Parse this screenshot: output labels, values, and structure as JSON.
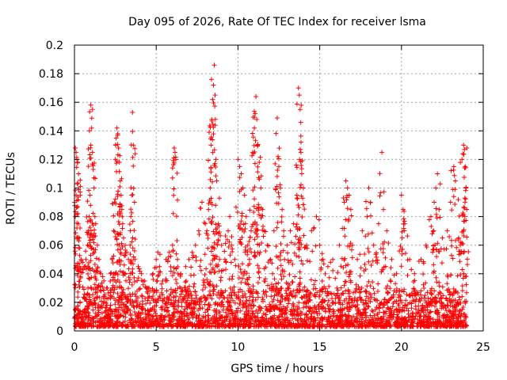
{
  "chart_data": {
    "type": "scatter",
    "title": "Day 095 of 2026, Rate Of TEC Index for receiver lsma",
    "xlabel": "GPS time / hours",
    "ylabel": "ROTI / TECUs",
    "xlim": [
      0,
      25
    ],
    "ylim": [
      0,
      0.2
    ],
    "xticks": [
      0,
      5,
      10,
      15,
      20,
      25
    ],
    "xtick_labels": [
      "0",
      "5",
      "10",
      "15",
      "20",
      "25"
    ],
    "yticks": [
      0,
      0.02,
      0.04,
      0.06,
      0.08,
      0.1,
      0.12,
      0.14,
      0.16,
      0.18,
      0.2
    ],
    "ytick_labels": [
      "0",
      "0.02",
      "0.04",
      "0.06",
      "0.08",
      "0.1",
      "0.12",
      "0.14",
      "0.16",
      "0.18",
      "0.2"
    ],
    "grid": true,
    "marker": "plus",
    "color": "#ff0000",
    "background_band": {
      "x_range": [
        0,
        24
      ],
      "y_range": [
        0.003,
        0.03
      ],
      "note": "dense continuous cloud of low ROTI values across the whole day"
    },
    "series": [
      {
        "name": "ROTI",
        "points": [
          [
            0.05,
            0.128
          ],
          [
            0.1,
            0.125
          ],
          [
            0.15,
            0.12
          ],
          [
            0.2,
            0.118
          ],
          [
            0.25,
            0.11
          ],
          [
            0.1,
            0.095
          ],
          [
            0.2,
            0.087
          ],
          [
            0.05,
            0.08
          ],
          [
            0.15,
            0.072
          ],
          [
            0.3,
            0.065
          ],
          [
            0.25,
            0.058
          ],
          [
            0.4,
            0.05
          ],
          [
            0.5,
            0.048
          ],
          [
            0.6,
            0.045
          ],
          [
            0.7,
            0.05
          ],
          [
            0.8,
            0.06
          ],
          [
            0.85,
            0.07
          ],
          [
            0.9,
            0.08
          ],
          [
            0.95,
            0.095
          ],
          [
            1.0,
            0.158
          ],
          [
            1.05,
            0.142
          ],
          [
            1.0,
            0.13
          ],
          [
            1.1,
            0.125
          ],
          [
            1.15,
            0.113
          ],
          [
            1.2,
            0.1
          ],
          [
            1.25,
            0.08
          ],
          [
            1.3,
            0.075
          ],
          [
            1.4,
            0.06
          ],
          [
            1.5,
            0.05
          ],
          [
            1.6,
            0.04
          ],
          [
            1.8,
            0.035
          ],
          [
            2.0,
            0.03
          ],
          [
            2.2,
            0.04
          ],
          [
            2.3,
            0.05
          ],
          [
            2.4,
            0.07
          ],
          [
            2.45,
            0.09
          ],
          [
            2.5,
            0.12
          ],
          [
            2.55,
            0.135
          ],
          [
            2.6,
            0.142
          ],
          [
            2.65,
            0.138
          ],
          [
            2.7,
            0.128
          ],
          [
            2.75,
            0.118
          ],
          [
            2.8,
            0.105
          ],
          [
            2.85,
            0.095
          ],
          [
            2.9,
            0.085
          ],
          [
            2.95,
            0.075
          ],
          [
            3.0,
            0.065
          ],
          [
            3.1,
            0.06
          ],
          [
            3.2,
            0.055
          ],
          [
            3.3,
            0.05
          ],
          [
            3.4,
            0.06
          ],
          [
            3.45,
            0.08
          ],
          [
            3.5,
            0.095
          ],
          [
            3.55,
            0.153
          ],
          [
            3.6,
            0.13
          ],
          [
            3.7,
            0.05
          ],
          [
            3.9,
            0.045
          ],
          [
            4.1,
            0.04
          ],
          [
            4.3,
            0.035
          ],
          [
            4.5,
            0.03
          ],
          [
            4.8,
            0.04
          ],
          [
            5.0,
            0.05
          ],
          [
            5.1,
            0.055
          ],
          [
            5.2,
            0.045
          ],
          [
            5.4,
            0.035
          ],
          [
            5.6,
            0.05
          ],
          [
            5.8,
            0.055
          ],
          [
            6.0,
            0.06
          ],
          [
            6.1,
            0.128
          ],
          [
            6.15,
            0.125
          ],
          [
            6.2,
            0.12
          ],
          [
            6.3,
            0.05
          ],
          [
            6.5,
            0.04
          ],
          [
            6.8,
            0.045
          ],
          [
            7.0,
            0.05
          ],
          [
            7.2,
            0.055
          ],
          [
            7.4,
            0.06
          ],
          [
            7.6,
            0.07
          ],
          [
            7.8,
            0.09
          ],
          [
            8.0,
            0.075
          ],
          [
            8.1,
            0.07
          ],
          [
            8.2,
            0.085
          ],
          [
            8.3,
            0.1
          ],
          [
            8.35,
            0.13
          ],
          [
            8.4,
            0.148
          ],
          [
            8.45,
            0.162
          ],
          [
            8.5,
            0.172
          ],
          [
            8.55,
            0.186
          ],
          [
            8.6,
            0.165
          ],
          [
            8.65,
            0.12
          ],
          [
            8.7,
            0.105
          ],
          [
            8.8,
            0.075
          ],
          [
            9.0,
            0.06
          ],
          [
            9.2,
            0.05
          ],
          [
            9.4,
            0.07
          ],
          [
            9.5,
            0.08
          ],
          [
            9.6,
            0.06
          ],
          [
            9.8,
            0.05
          ],
          [
            10.0,
            0.12
          ],
          [
            10.1,
            0.115
          ],
          [
            10.2,
            0.11
          ],
          [
            10.3,
            0.1
          ],
          [
            10.4,
            0.095
          ],
          [
            10.5,
            0.08
          ],
          [
            10.6,
            0.06
          ],
          [
            10.7,
            0.05
          ],
          [
            10.8,
            0.07
          ],
          [
            10.9,
            0.125
          ],
          [
            11.0,
            0.142
          ],
          [
            11.05,
            0.152
          ],
          [
            11.1,
            0.164
          ],
          [
            11.15,
            0.148
          ],
          [
            11.2,
            0.13
          ],
          [
            11.3,
            0.118
          ],
          [
            11.4,
            0.1
          ],
          [
            11.5,
            0.085
          ],
          [
            11.6,
            0.07
          ],
          [
            11.8,
            0.06
          ],
          [
            12.0,
            0.05
          ],
          [
            12.2,
            0.07
          ],
          [
            12.4,
            0.149
          ],
          [
            12.45,
            0.122
          ],
          [
            12.5,
            0.115
          ],
          [
            12.6,
            0.1
          ],
          [
            12.7,
            0.085
          ],
          [
            12.8,
            0.07
          ],
          [
            13.0,
            0.06
          ],
          [
            13.2,
            0.07
          ],
          [
            13.4,
            0.075
          ],
          [
            13.6,
            0.095
          ],
          [
            13.7,
            0.17
          ],
          [
            13.75,
            0.165
          ],
          [
            13.8,
            0.155
          ],
          [
            13.85,
            0.125
          ],
          [
            13.9,
            0.11
          ],
          [
            14.0,
            0.1
          ],
          [
            14.2,
            0.06
          ],
          [
            14.5,
            0.07
          ],
          [
            14.8,
            0.08
          ],
          [
            15.0,
            0.06
          ],
          [
            15.2,
            0.05
          ],
          [
            15.5,
            0.045
          ],
          [
            15.8,
            0.05
          ],
          [
            16.2,
            0.06
          ],
          [
            16.5,
            0.09
          ],
          [
            16.6,
            0.105
          ],
          [
            16.7,
            0.1
          ],
          [
            16.8,
            0.095
          ],
          [
            16.9,
            0.085
          ],
          [
            17.0,
            0.06
          ],
          [
            17.3,
            0.05
          ],
          [
            17.6,
            0.07
          ],
          [
            17.9,
            0.08
          ],
          [
            18.0,
            0.1
          ],
          [
            18.1,
            0.09
          ],
          [
            18.3,
            0.06
          ],
          [
            18.6,
            0.075
          ],
          [
            18.8,
            0.125
          ],
          [
            18.9,
            0.085
          ],
          [
            19.1,
            0.07
          ],
          [
            19.4,
            0.05
          ],
          [
            19.7,
            0.04
          ],
          [
            20.0,
            0.095
          ],
          [
            20.1,
            0.085
          ],
          [
            20.2,
            0.075
          ],
          [
            20.5,
            0.05
          ],
          [
            20.8,
            0.04
          ],
          [
            21.2,
            0.05
          ],
          [
            21.5,
            0.06
          ],
          [
            21.8,
            0.08
          ],
          [
            22.0,
            0.09
          ],
          [
            22.1,
            0.1
          ],
          [
            22.2,
            0.11
          ],
          [
            22.3,
            0.085
          ],
          [
            22.5,
            0.065
          ],
          [
            22.8,
            0.07
          ],
          [
            23.0,
            0.09
          ],
          [
            23.2,
            0.115
          ],
          [
            23.3,
            0.105
          ],
          [
            23.5,
            0.065
          ],
          [
            23.6,
            0.06
          ],
          [
            23.7,
            0.12
          ],
          [
            23.8,
            0.13
          ],
          [
            23.85,
            0.127
          ],
          [
            23.9,
            0.115
          ],
          [
            23.95,
            0.1
          ],
          [
            24.0,
            0.128
          ]
        ]
      }
    ]
  }
}
